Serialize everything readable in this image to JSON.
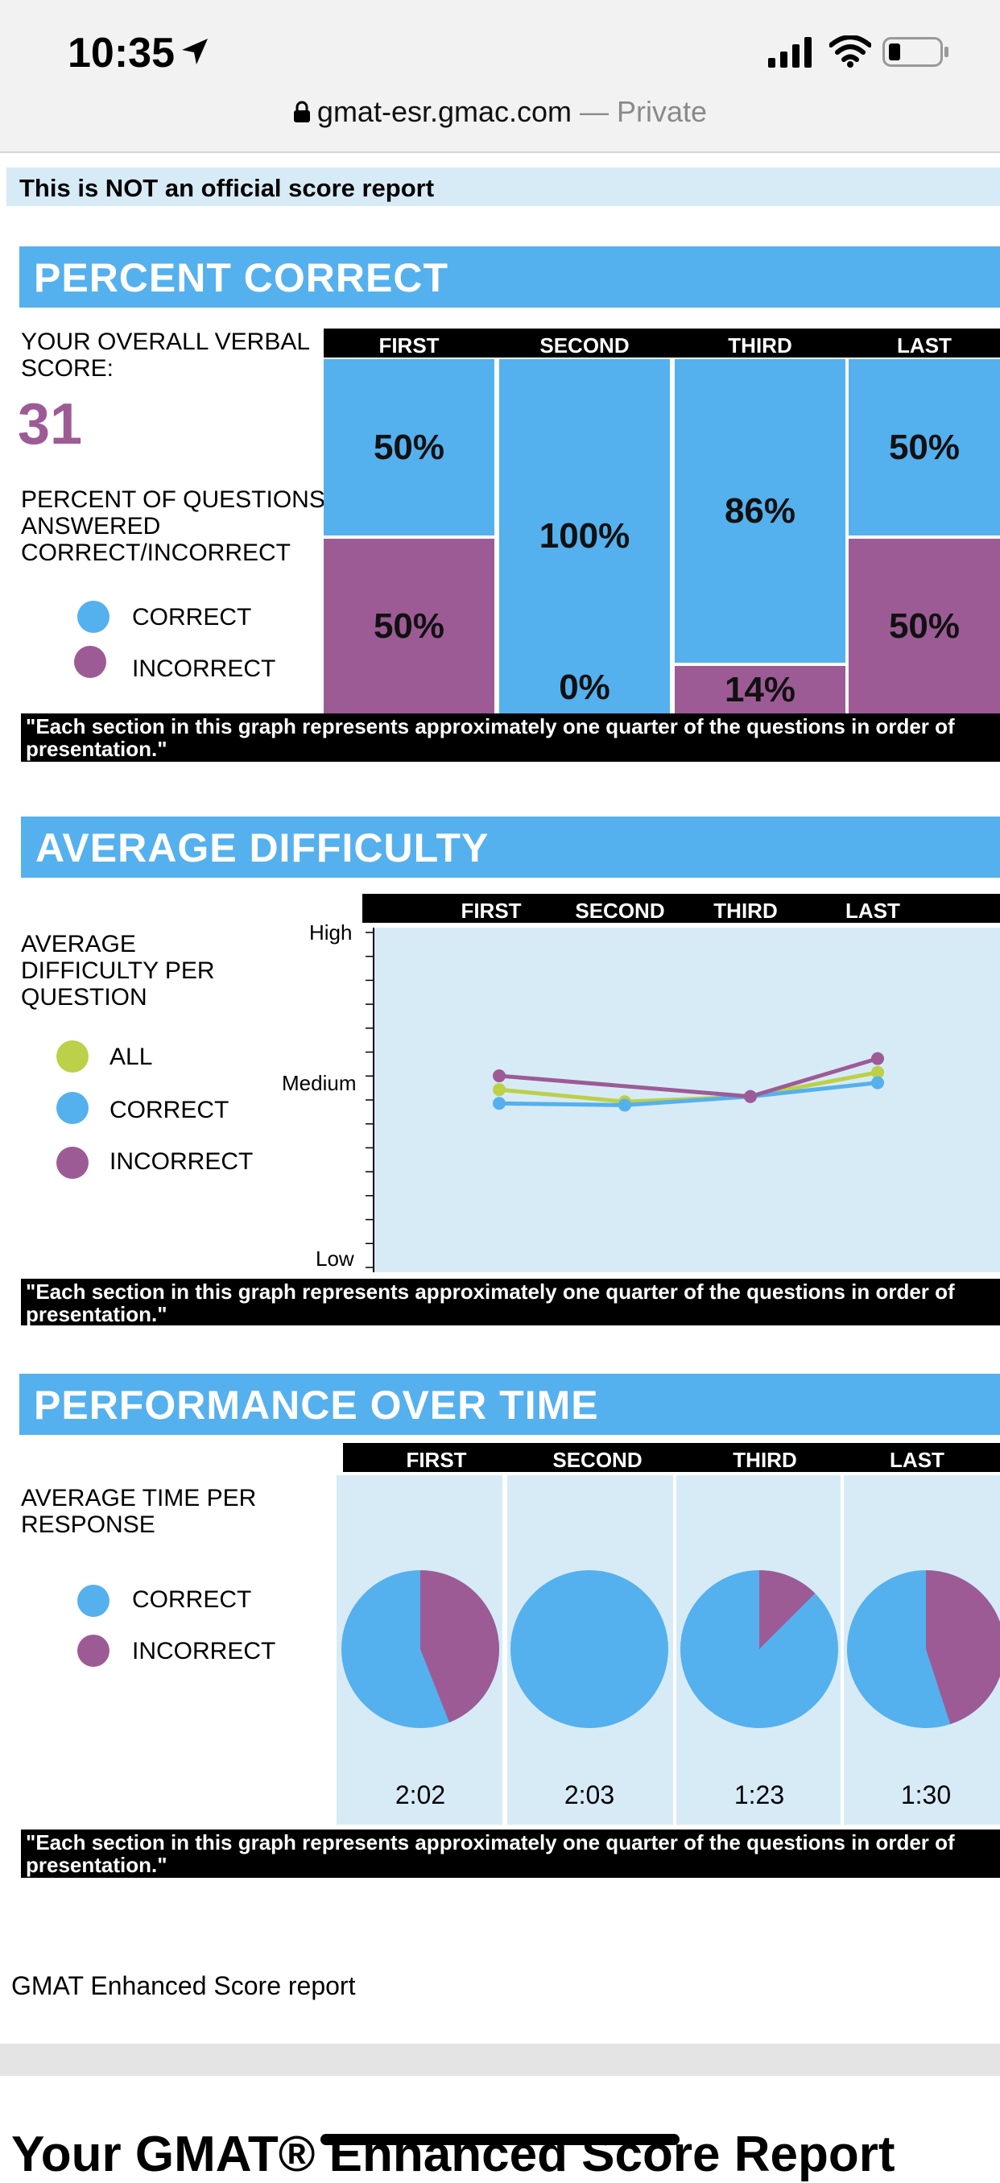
{
  "browser": {
    "time": "10:35",
    "url": "gmat-esr.gmac.com",
    "privacy": "— Private"
  },
  "notice": "This is NOT an official score report",
  "columns": [
    "FIRST",
    "SECOND",
    "THIRD",
    "LAST"
  ],
  "footnote": "\"Each section in this graph represents approximately one quarter of the questions in order of presentation.\"",
  "colors": {
    "correct": "#55b0ee",
    "incorrect": "#9d5b96",
    "all": "#bcd048",
    "panel": "#d7ebf7"
  },
  "percent_correct": {
    "title": "PERCENT CORRECT",
    "score_label": "YOUR OVERALL VERBAL SCORE:",
    "score": "31",
    "desc": "PERCENT OF QUESTIONS ANSWERED CORRECT/INCORRECT",
    "legend": {
      "correct": "CORRECT",
      "incorrect": "INCORRECT"
    },
    "labels": {
      "correct": [
        "50%",
        "100%",
        "86%",
        "50%"
      ],
      "incorrect": [
        "50%",
        "0%",
        "14%",
        "50%"
      ]
    }
  },
  "average_difficulty": {
    "title": "AVERAGE DIFFICULTY",
    "desc": "AVERAGE DIFFICULTY PER QUESTION",
    "legend": {
      "all": "ALL",
      "correct": "CORRECT",
      "incorrect": "INCORRECT"
    },
    "y_labels": {
      "high": "High",
      "medium": "Medium",
      "low": "Low"
    }
  },
  "performance": {
    "title": "PERFORMANCE OVER TIME",
    "desc": "AVERAGE TIME PER RESPONSE",
    "legend": {
      "correct": "CORRECT",
      "incorrect": "INCORRECT"
    },
    "times": [
      "2:02",
      "2:03",
      "1:23",
      "1:30"
    ]
  },
  "footer": "GMAT Enhanced Score report",
  "bottom_title": "Your GMAT® Enhanced Score Report",
  "chart_data": [
    {
      "type": "bar",
      "title": "PERCENT CORRECT",
      "categories": [
        "FIRST",
        "SECOND",
        "THIRD",
        "LAST"
      ],
      "series": [
        {
          "name": "CORRECT",
          "values": [
            50,
            100,
            86,
            50
          ]
        },
        {
          "name": "INCORRECT",
          "values": [
            50,
            0,
            14,
            50
          ]
        }
      ],
      "ylim": [
        0,
        100
      ]
    },
    {
      "type": "line",
      "title": "AVERAGE DIFFICULTY",
      "ylabel": "AVERAGE DIFFICULTY PER QUESTION",
      "categories": [
        "FIRST",
        "SECOND",
        "THIRD",
        "LAST"
      ],
      "series": [
        {
          "name": "ALL",
          "values": [
            0.53,
            0.495,
            0.51,
            0.58
          ]
        },
        {
          "name": "CORRECT",
          "values": [
            0.49,
            0.485,
            0.51,
            0.55
          ]
        },
        {
          "name": "INCORRECT",
          "values": [
            0.57,
            null,
            0.51,
            0.62
          ]
        }
      ],
      "ylim": [
        0,
        1
      ]
    },
    {
      "type": "pie",
      "title": "PERFORMANCE OVER TIME",
      "categories": [
        "FIRST",
        "SECOND",
        "THIRD",
        "LAST"
      ],
      "series": [
        {
          "name": "CORRECT",
          "values": [
            0.56,
            1.0,
            0.875,
            0.55
          ]
        },
        {
          "name": "INCORRECT",
          "values": [
            0.44,
            0.0,
            0.125,
            0.45
          ]
        }
      ],
      "times": [
        "2:02",
        "2:03",
        "1:23",
        "1:30"
      ]
    }
  ]
}
